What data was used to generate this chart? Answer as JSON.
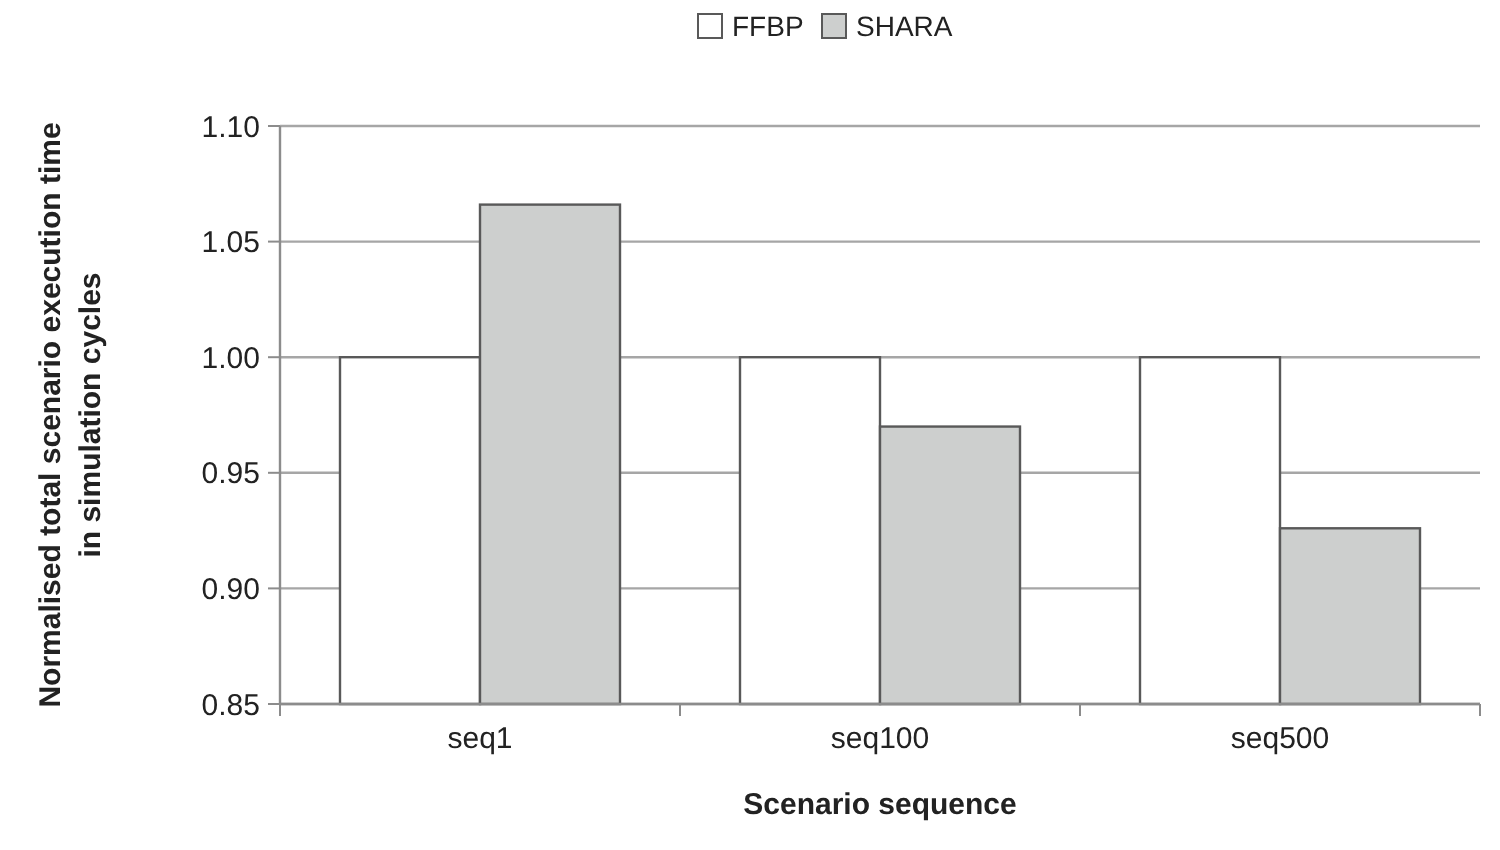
{
  "chart_data": {
    "type": "bar",
    "xlabel": "Scenario sequence",
    "ylabel": "Normalised total scenario execution time in simulation cycles",
    "categories": [
      "seq1",
      "seq100",
      "seq500"
    ],
    "series": [
      {
        "name": "FFBP",
        "color": "#ffffff",
        "values": [
          1.0,
          1.0,
          1.0
        ]
      },
      {
        "name": "SHARA",
        "color": "#cdcfce",
        "values": [
          1.066,
          0.97,
          0.926
        ]
      }
    ],
    "ylim": [
      0.85,
      1.1
    ],
    "yticks": [
      {
        "value": 0.85,
        "label": "0.85"
      },
      {
        "value": 0.9,
        "label": "0.90"
      },
      {
        "value": 0.95,
        "label": "0.95"
      },
      {
        "value": 1.0,
        "label": "1.00"
      },
      {
        "value": 1.05,
        "label": "1.05"
      },
      {
        "value": 1.1,
        "label": "1.10"
      }
    ],
    "grid": "y",
    "legend": "top"
  }
}
